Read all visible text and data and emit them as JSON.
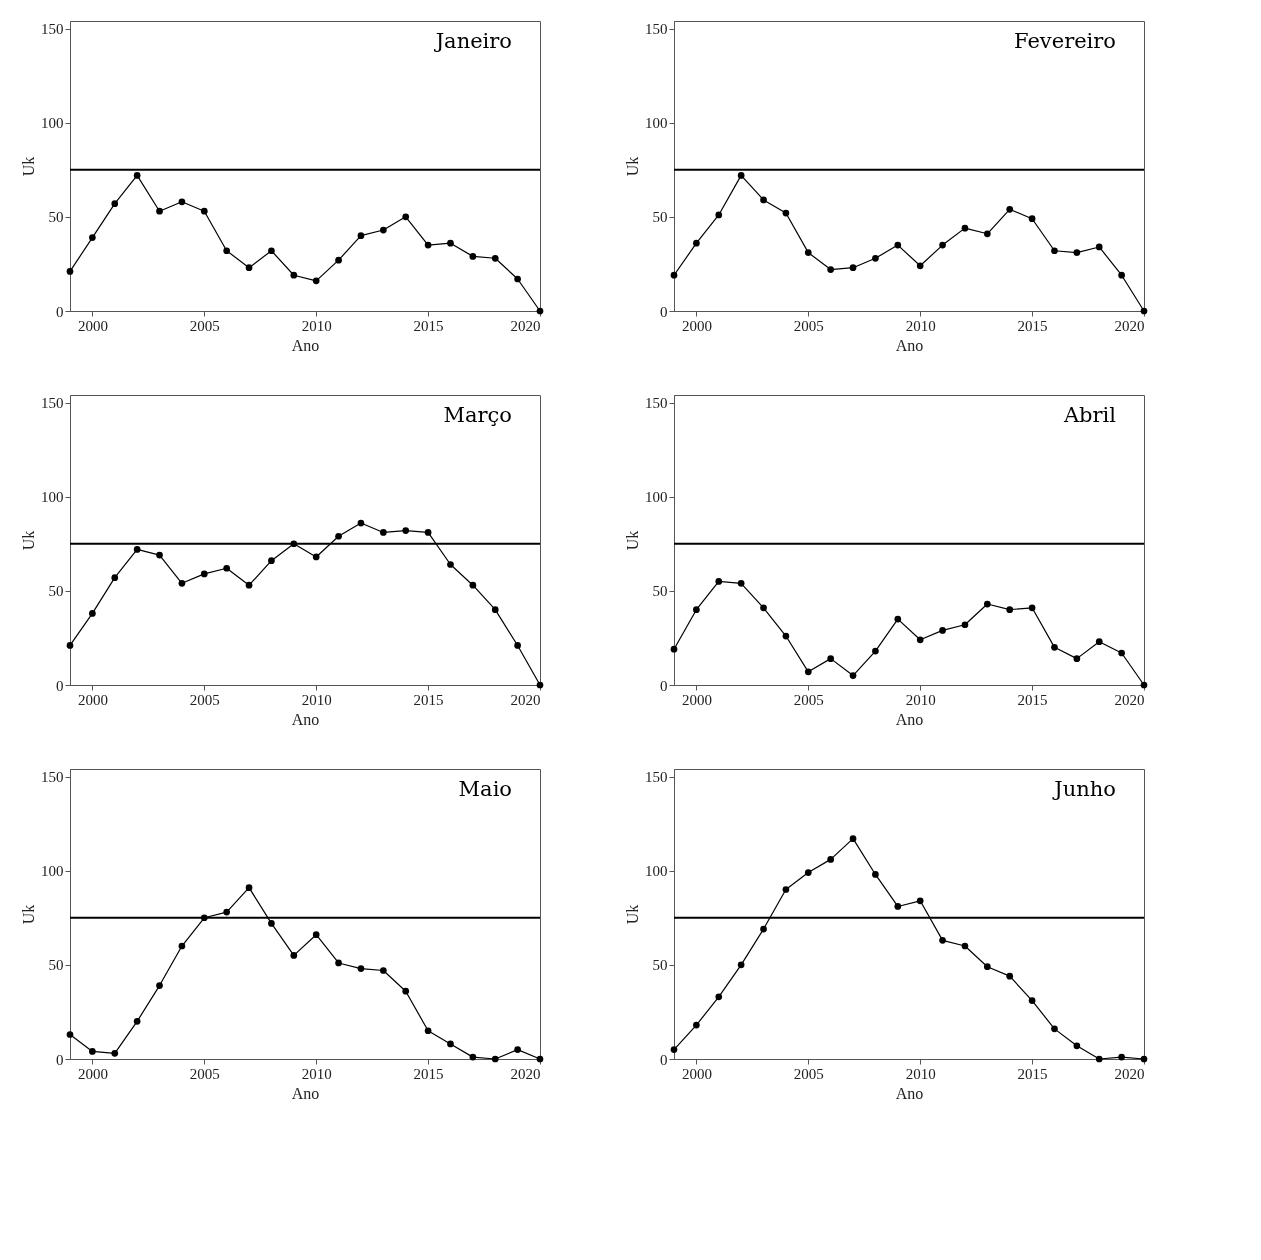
{
  "chart_data": [
    {
      "type": "line",
      "title": "Janeiro",
      "xlabel": "Ano",
      "ylabel": "Uk",
      "xlim": [
        1999,
        2020
      ],
      "xticks": [
        2000,
        2005,
        2010,
        2015,
        2020
      ],
      "ylim": [
        0,
        154
      ],
      "yticks": [
        0,
        50,
        100,
        150
      ],
      "grid": false,
      "marker": "circle",
      "line_style": "solid",
      "x": [
        1999,
        2000,
        2001,
        2002,
        2003,
        2004,
        2005,
        2006,
        2007,
        2008,
        2009,
        2010,
        2011,
        2012,
        2013,
        2014,
        2015,
        2016,
        2017,
        2018,
        2019,
        2020
      ],
      "ref_lines": [
        {
          "axis": "y",
          "value": 75,
          "color": "#000000"
        }
      ],
      "series": [
        {
          "color": "#000000",
          "values": [
            21,
            39,
            57,
            72,
            53,
            58,
            53,
            32,
            23,
            32,
            19,
            16,
            27,
            40,
            43,
            50,
            35,
            36,
            29,
            28,
            17,
            0
          ]
        }
      ]
    },
    {
      "type": "line",
      "title": "Fevereiro",
      "xlabel": "Ano",
      "ylabel": "Uk",
      "xlim": [
        1999,
        2020
      ],
      "xticks": [
        2000,
        2005,
        2010,
        2015,
        2020
      ],
      "ylim": [
        0,
        154
      ],
      "yticks": [
        0,
        50,
        100,
        150
      ],
      "grid": false,
      "marker": "circle",
      "line_style": "solid",
      "x": [
        1999,
        2000,
        2001,
        2002,
        2003,
        2004,
        2005,
        2006,
        2007,
        2008,
        2009,
        2010,
        2011,
        2012,
        2013,
        2014,
        2015,
        2016,
        2017,
        2018,
        2019,
        2020
      ],
      "ref_lines": [
        {
          "axis": "y",
          "value": 75,
          "color": "#000000"
        }
      ],
      "series": [
        {
          "color": "#000000",
          "values": [
            19,
            36,
            51,
            72,
            59,
            52,
            31,
            22,
            23,
            28,
            35,
            24,
            35,
            44,
            41,
            54,
            49,
            32,
            31,
            34,
            19,
            0
          ]
        }
      ]
    },
    {
      "type": "line",
      "title": "Março",
      "xlabel": "Ano",
      "ylabel": "Uk",
      "xlim": [
        1999,
        2020
      ],
      "xticks": [
        2000,
        2005,
        2010,
        2015,
        2020
      ],
      "ylim": [
        0,
        154
      ],
      "yticks": [
        0,
        50,
        100,
        150
      ],
      "grid": false,
      "marker": "circle",
      "line_style": "solid",
      "x": [
        1999,
        2000,
        2001,
        2002,
        2003,
        2004,
        2005,
        2006,
        2007,
        2008,
        2009,
        2010,
        2011,
        2012,
        2013,
        2014,
        2015,
        2016,
        2017,
        2018,
        2019,
        2020
      ],
      "ref_lines": [
        {
          "axis": "y",
          "value": 75,
          "color": "#000000"
        }
      ],
      "series": [
        {
          "color": "#000000",
          "values": [
            21,
            38,
            57,
            72,
            69,
            54,
            59,
            62,
            53,
            66,
            75,
            68,
            79,
            86,
            81,
            82,
            81,
            64,
            53,
            40,
            21,
            0
          ]
        }
      ]
    },
    {
      "type": "line",
      "title": "Abril",
      "xlabel": "Ano",
      "ylabel": "Uk",
      "xlim": [
        1999,
        2020
      ],
      "xticks": [
        2000,
        2005,
        2010,
        2015,
        2020
      ],
      "ylim": [
        0,
        154
      ],
      "yticks": [
        0,
        50,
        100,
        150
      ],
      "grid": false,
      "marker": "circle",
      "line_style": "solid",
      "x": [
        1999,
        2000,
        2001,
        2002,
        2003,
        2004,
        2005,
        2006,
        2007,
        2008,
        2009,
        2010,
        2011,
        2012,
        2013,
        2014,
        2015,
        2016,
        2017,
        2018,
        2019,
        2020
      ],
      "ref_lines": [
        {
          "axis": "y",
          "value": 75,
          "color": "#000000"
        }
      ],
      "series": [
        {
          "color": "#000000",
          "values": [
            19,
            40,
            55,
            54,
            41,
            26,
            7,
            14,
            5,
            18,
            35,
            24,
            29,
            32,
            43,
            40,
            41,
            20,
            14,
            23,
            17,
            0
          ]
        }
      ]
    },
    {
      "type": "line",
      "title": "Maio",
      "xlabel": "Ano",
      "ylabel": "Uk",
      "xlim": [
        1999,
        2020
      ],
      "xticks": [
        2000,
        2005,
        2010,
        2015,
        2020
      ],
      "ylim": [
        0,
        154
      ],
      "yticks": [
        0,
        50,
        100,
        150
      ],
      "grid": false,
      "marker": "circle",
      "line_style": "solid",
      "x": [
        1999,
        2000,
        2001,
        2002,
        2003,
        2004,
        2005,
        2006,
        2007,
        2008,
        2009,
        2010,
        2011,
        2012,
        2013,
        2014,
        2015,
        2016,
        2017,
        2018,
        2019,
        2020
      ],
      "ref_lines": [
        {
          "axis": "y",
          "value": 75,
          "color": "#000000"
        }
      ],
      "series": [
        {
          "color": "#000000",
          "values": [
            13,
            4,
            3,
            20,
            39,
            60,
            75,
            78,
            91,
            72,
            55,
            66,
            51,
            48,
            47,
            36,
            15,
            8,
            1,
            0,
            5,
            0
          ]
        }
      ]
    },
    {
      "type": "line",
      "title": "Junho",
      "xlabel": "Ano",
      "ylabel": "Uk",
      "xlim": [
        1999,
        2020
      ],
      "xticks": [
        2000,
        2005,
        2010,
        2015,
        2020
      ],
      "ylim": [
        0,
        154
      ],
      "yticks": [
        0,
        50,
        100,
        150
      ],
      "grid": false,
      "marker": "circle",
      "line_style": "solid",
      "x": [
        1999,
        2000,
        2001,
        2002,
        2003,
        2004,
        2005,
        2006,
        2007,
        2008,
        2009,
        2010,
        2011,
        2012,
        2013,
        2014,
        2015,
        2016,
        2017,
        2018,
        2019,
        2020
      ],
      "ref_lines": [
        {
          "axis": "y",
          "value": 75,
          "color": "#000000"
        }
      ],
      "series": [
        {
          "color": "#000000",
          "values": [
            5,
            18,
            33,
            50,
            69,
            90,
            99,
            106,
            117,
            98,
            81,
            84,
            63,
            60,
            49,
            44,
            31,
            16,
            7,
            0,
            1,
            0
          ]
        }
      ]
    }
  ]
}
